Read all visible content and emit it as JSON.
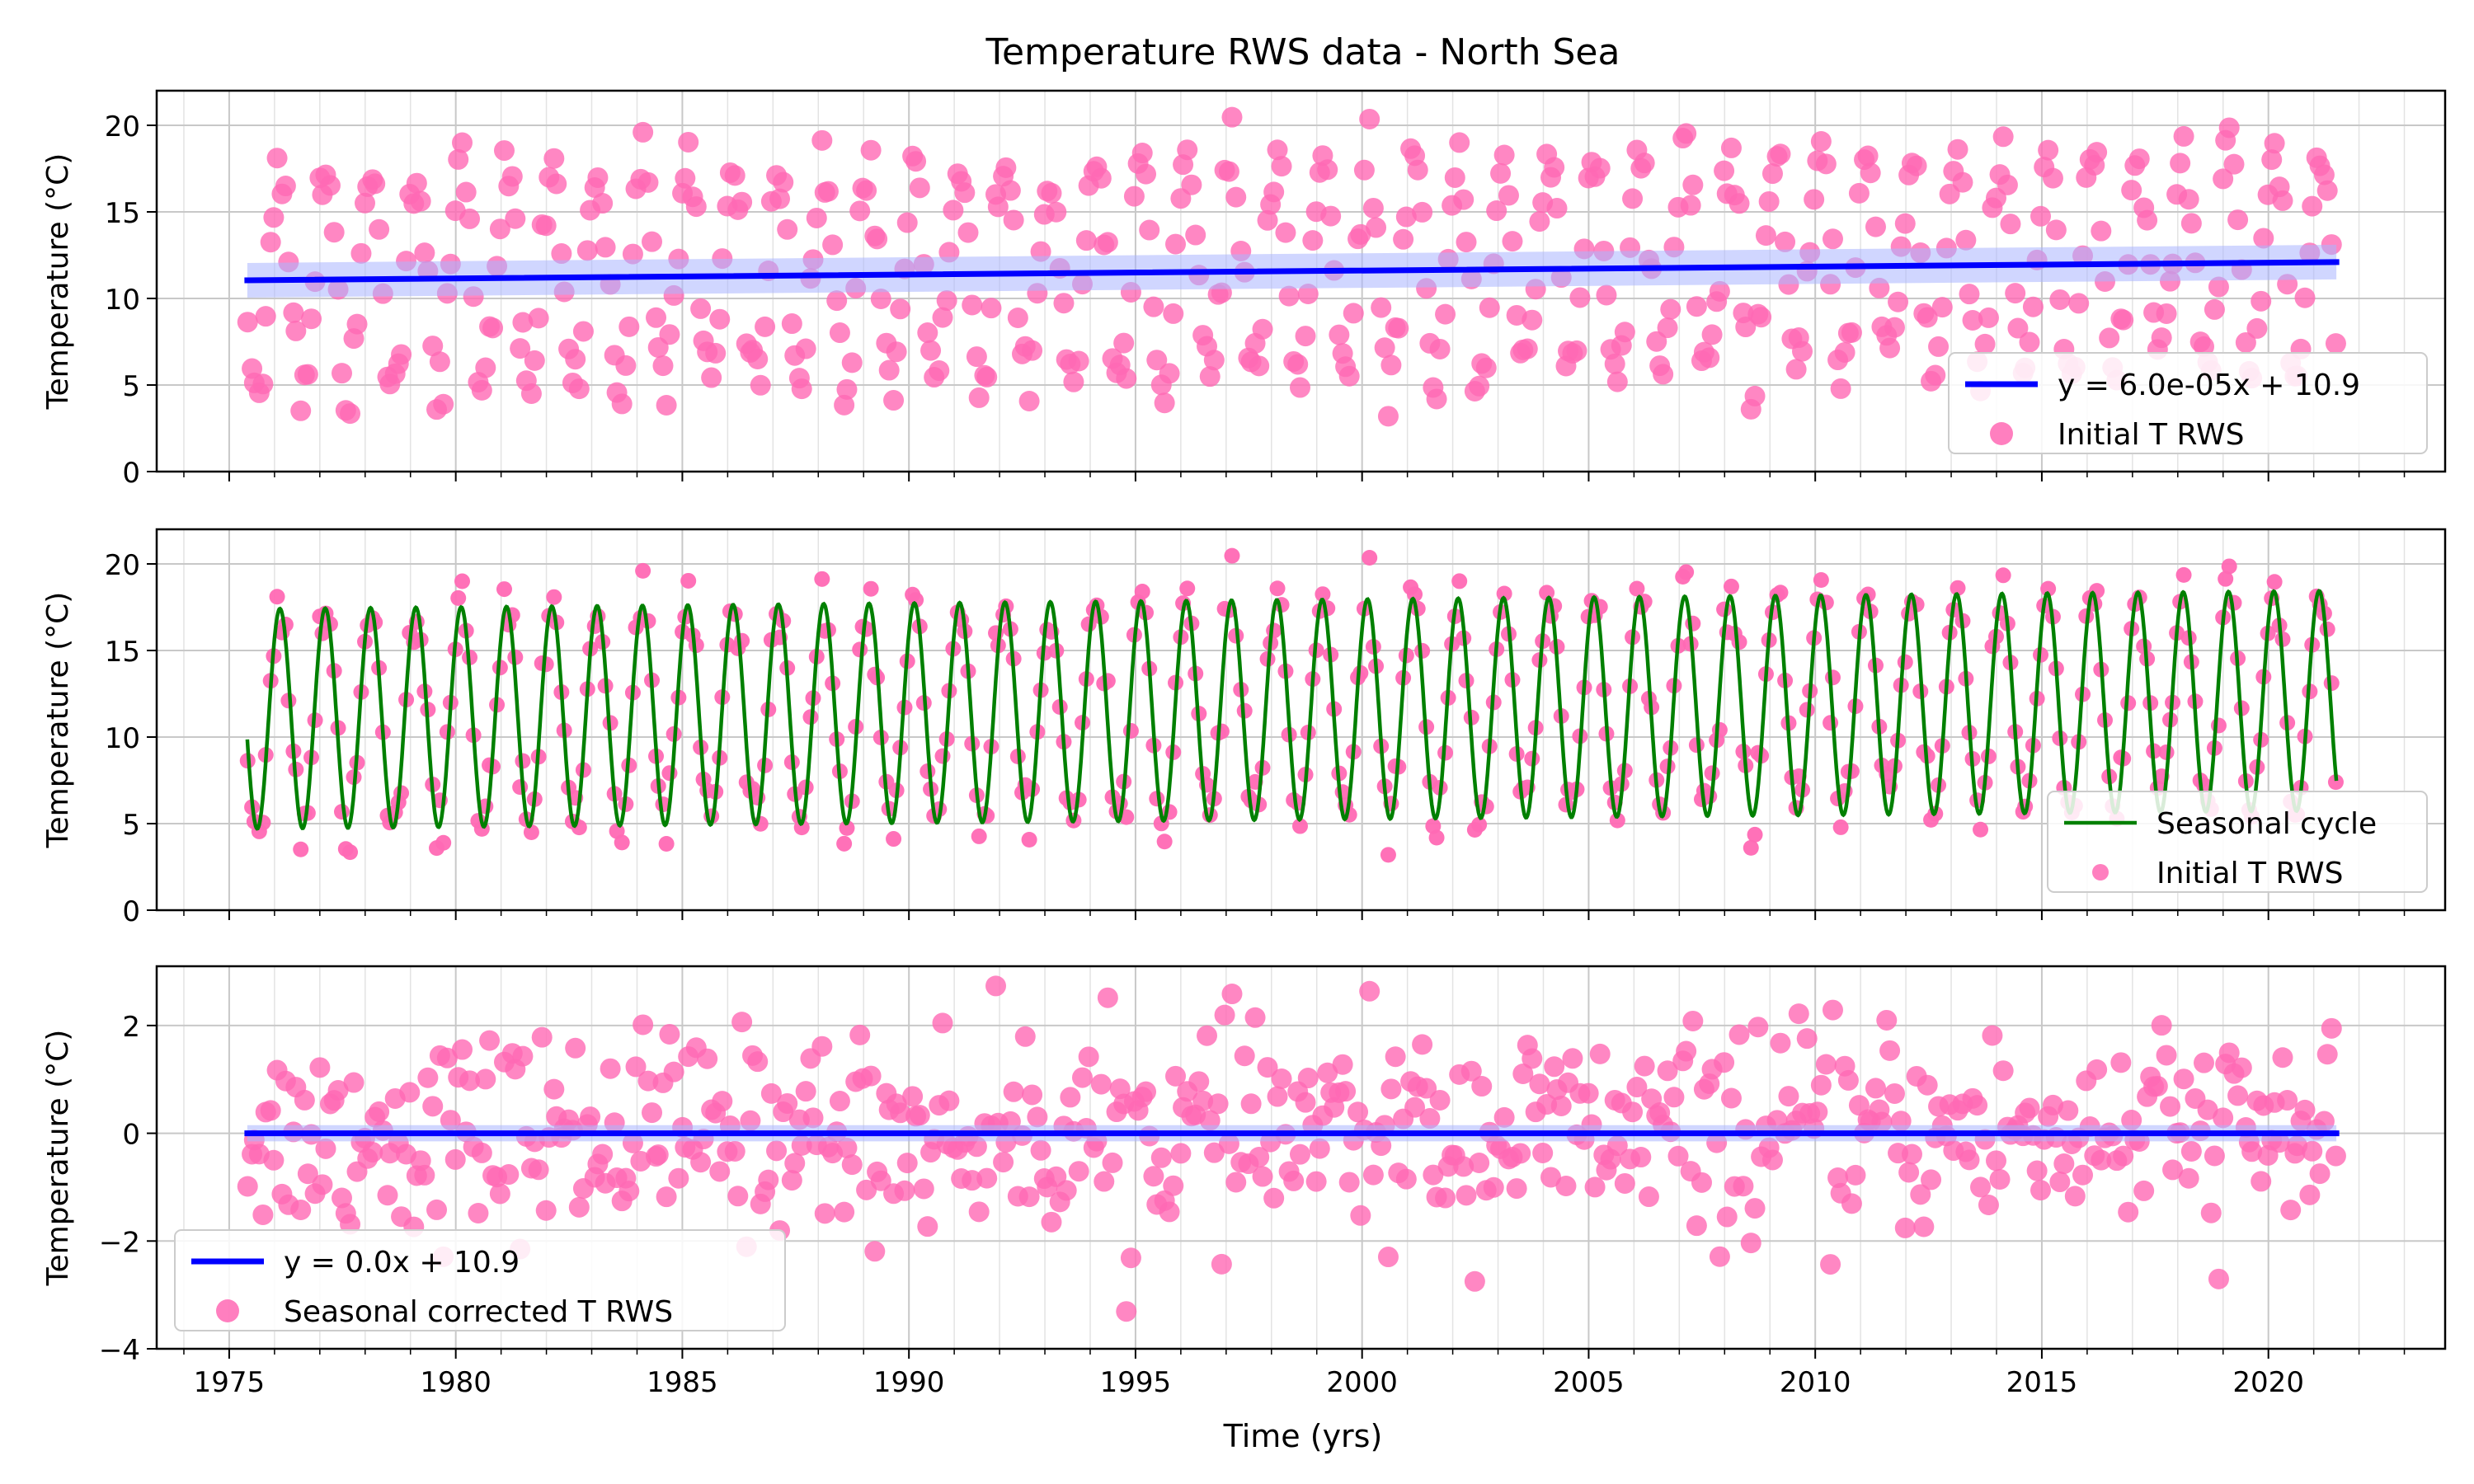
{
  "figure": {
    "title": "Temperature RWS data - North Sea",
    "xlabel": "Time (yrs)",
    "x_ticks": [
      1975,
      1980,
      1985,
      1990,
      1995,
      2000,
      2005,
      2010,
      2015,
      2020
    ],
    "colors": {
      "points": "#ff69b4",
      "trend": "#0000ff",
      "seasonal": "#008000",
      "band": "#aab4ff"
    }
  },
  "chart_data": [
    {
      "type": "scatter",
      "ylabel": "Temperature (°C)",
      "xlim": [
        1973.4,
        2023.9
      ],
      "ylim": [
        0,
        22
      ],
      "yticks": [
        0,
        5,
        10,
        15,
        20
      ],
      "grid": true,
      "legend_position": "lower right",
      "sampling": {
        "start": 1975.4,
        "end": 2021.5,
        "per_year": 12
      },
      "series": [
        {
          "name": "y = 6.0e-05x + 10.9",
          "kind": "line",
          "color": "#0000ff",
          "x": [
            1975.4,
            2021.5
          ],
          "y": [
            11.05,
            12.1
          ],
          "band": 1.0
        },
        {
          "name": "Initial T RWS",
          "kind": "scatter",
          "color": "#ff69b4",
          "model": "seasonal_plus_noise"
        }
      ]
    },
    {
      "type": "line",
      "ylabel": "Temperature (°C)",
      "xlim": [
        1973.4,
        2023.9
      ],
      "ylim": [
        0,
        22
      ],
      "yticks": [
        0,
        5,
        10,
        15,
        20
      ],
      "grid": true,
      "legend_position": "lower right",
      "series": [
        {
          "name": "Seasonal cycle",
          "kind": "sinusoid",
          "color": "#008000",
          "mean_start": 11.05,
          "mean_end": 12.1,
          "amplitude": 6.35,
          "period_years": 1.0,
          "x_start": 1975.4,
          "x_end": 2021.5,
          "y_start": 10.5,
          "y_end": 15.0
        },
        {
          "name": "Initial T RWS",
          "kind": "scatter",
          "color": "#ff69b4",
          "model": "seasonal_plus_noise"
        }
      ]
    },
    {
      "type": "scatter",
      "ylabel": "Temperature (°C)",
      "xlim": [
        1973.4,
        2023.9
      ],
      "ylim": [
        -4,
        3.1
      ],
      "yticks": [
        -4,
        -2,
        0,
        2
      ],
      "grid": true,
      "legend_position": "lower left",
      "series": [
        {
          "name": "y = 0.0x + 10.9",
          "kind": "line",
          "color": "#0000ff",
          "x": [
            1975.4,
            2021.5
          ],
          "y": [
            0.0,
            0.0
          ],
          "band": 0.15
        },
        {
          "name": "Seasonal corrected T RWS",
          "kind": "scatter",
          "color": "#ff69b4",
          "model": "residual_noise"
        }
      ]
    }
  ]
}
